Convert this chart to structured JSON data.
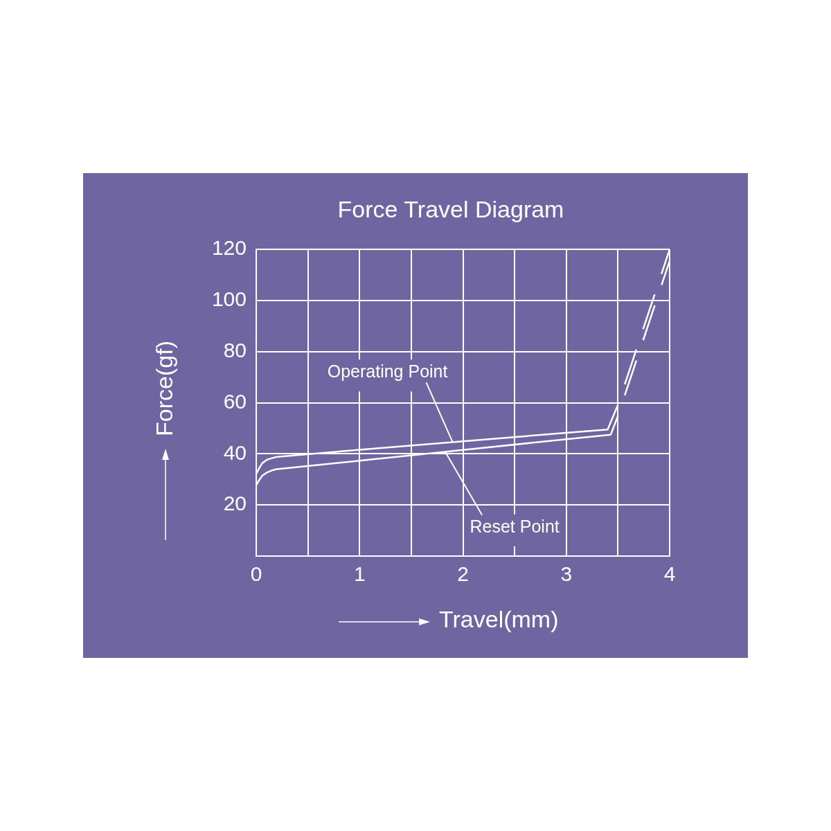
{
  "chart_data": {
    "type": "line",
    "title": "Force Travel Diagram",
    "xlabel": "Travel(mm)",
    "ylabel": "Force(gf)",
    "xlim": [
      0,
      4
    ],
    "xticks": [
      0,
      {
        "value": 0.5,
        "label": null
      },
      1,
      {
        "value": 1.5,
        "label": null
      },
      2,
      {
        "value": 2.5,
        "label": null
      },
      3,
      {
        "value": 3.5,
        "label": null
      },
      4
    ],
    "ylim": [
      0,
      120
    ],
    "yticks": [
      {
        "value": 0,
        "label": null
      },
      20,
      40,
      60,
      80,
      100,
      120
    ],
    "grid": true,
    "marker": "none",
    "series": [
      {
        "color": "#ffffff",
        "x": [
          0,
          0.03,
          0.06,
          0.1,
          0.15,
          0.2,
          1,
          2,
          3,
          3.4,
          3.5
        ],
        "values": [
          32.2,
          34.5,
          36.4,
          37.6,
          38.3,
          38.8,
          41.6,
          44.9,
          48.2,
          49.5,
          59.2
        ]
      },
      {
        "color": "#ffffff",
        "line_style": "dashed",
        "x": [
          3.5,
          4
        ],
        "values": [
          59.2,
          120
        ]
      },
      {
        "color": "#ffffff",
        "x": [
          0,
          0.03,
          0.06,
          0.1,
          0.15,
          0.2,
          1,
          2,
          3,
          3.43,
          3.5
        ],
        "values": [
          27.7,
          29.8,
          31.5,
          32.6,
          33.5,
          34,
          37.3,
          41.5,
          45.7,
          47.5,
          54.9
        ]
      },
      {
        "color": "#ffffff",
        "line_style": "dashed",
        "x": [
          3.5,
          4
        ],
        "values": [
          54.9,
          115.5
        ]
      }
    ],
    "annotations": [
      {
        "text": "Operating Point",
        "x": 1.9,
        "y": 44.6
      },
      {
        "text": "Reset Point",
        "x": 1.83,
        "y": 40.7
      }
    ]
  }
}
